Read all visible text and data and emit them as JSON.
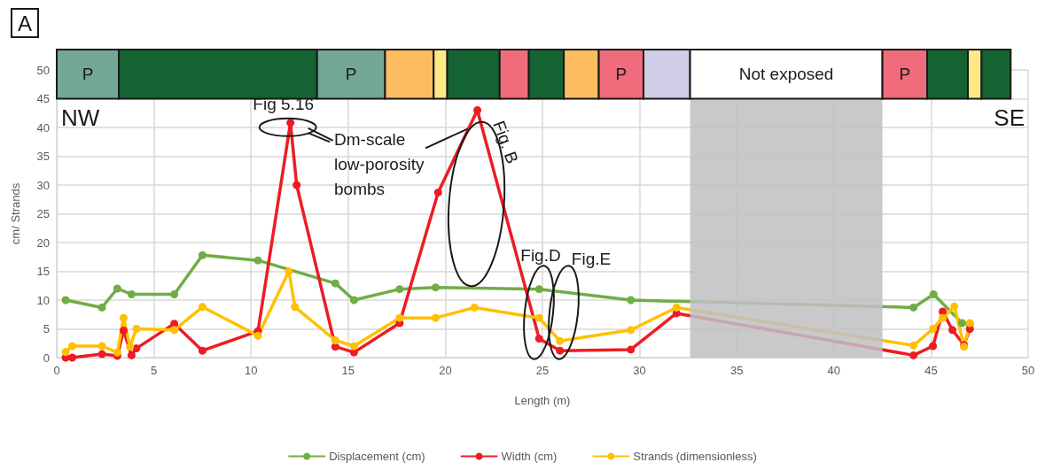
{
  "chart_data": {
    "type": "line",
    "xlabel": "Length (m)",
    "ylabel": "cm/ Strands",
    "xlim": [
      0,
      50
    ],
    "xticks": [
      0,
      5,
      10,
      15,
      20,
      25,
      30,
      35,
      40,
      45,
      50
    ],
    "ylim": [
      0,
      50
    ],
    "yticks": [
      0,
      5,
      10,
      15,
      20,
      25,
      30,
      35,
      40,
      45,
      50
    ],
    "grid": true,
    "legend": "bottom",
    "marker": "circle",
    "line_style": "solid",
    "series": [
      {
        "name": "Displacement (cm)",
        "color": "#70ad47",
        "x": [
          0.46,
          2.33,
          3.12,
          3.85,
          6.05,
          7.5,
          10.36,
          14.34,
          15.3,
          17.65,
          19.5,
          24.83,
          29.55,
          44.1,
          45.13,
          46.6,
          47.0
        ],
        "values": [
          10,
          8.7,
          12,
          11,
          11,
          17.8,
          16.9,
          12.9,
          10,
          11.9,
          12.2,
          11.9,
          10,
          8.7,
          11,
          6,
          5.8
        ]
      },
      {
        "name": "Width (cm)",
        "color": "#ed1c24",
        "x": [
          0.46,
          0.8,
          2.33,
          3.12,
          3.44,
          3.85,
          4.1,
          6.05,
          7.5,
          10.36,
          12.03,
          12.35,
          14.34,
          15.3,
          17.65,
          19.63,
          21.65,
          24.83,
          25.9,
          29.55,
          31.9,
          44.1,
          45.1,
          45.6,
          46.1,
          46.7,
          47.0
        ],
        "values": [
          0,
          0,
          0.6,
          0.3,
          4.7,
          0.4,
          1.6,
          5.9,
          1.2,
          4.6,
          40.8,
          30,
          1.9,
          0.9,
          6,
          28.7,
          43,
          3.3,
          1.2,
          1.4,
          7.7,
          0.4,
          2,
          8,
          4.8,
          2.2,
          5
        ]
      },
      {
        "name": "Strands (dimensionless)",
        "color": "#ffc000",
        "x": [
          0.46,
          0.8,
          2.33,
          3.12,
          3.44,
          3.77,
          4.1,
          6.05,
          7.5,
          10.36,
          11.95,
          12.26,
          14.34,
          15.3,
          17.65,
          19.5,
          21.5,
          24.83,
          25.9,
          29.55,
          31.9,
          44.1,
          45.1,
          45.6,
          46.2,
          46.7,
          47.0
        ],
        "values": [
          1,
          2,
          2,
          0.9,
          6.9,
          1.9,
          5,
          4.8,
          8.8,
          3.8,
          15,
          8.8,
          3,
          2,
          6.9,
          6.9,
          8.7,
          6.9,
          2.9,
          4.8,
          8.7,
          2.1,
          5,
          6.9,
          8.9,
          1.9,
          6
        ]
      }
    ],
    "bands": [
      {
        "axis": "x",
        "from": 0,
        "to": 3.2,
        "label": "P",
        "color": "#72a895"
      },
      {
        "axis": "x",
        "from": 3.2,
        "to": 13.4,
        "label": null,
        "color": "#156332"
      },
      {
        "axis": "x",
        "from": 13.4,
        "to": 16.9,
        "label": "P",
        "color": "#72a895"
      },
      {
        "axis": "x",
        "from": 16.9,
        "to": 19.4,
        "label": null,
        "color": "#fbbd60"
      },
      {
        "axis": "x",
        "from": 19.4,
        "to": 20.1,
        "label": null,
        "color": "#fdea86"
      },
      {
        "axis": "x",
        "from": 20.1,
        "to": 22.8,
        "label": null,
        "color": "#156332"
      },
      {
        "axis": "x",
        "from": 22.8,
        "to": 24.3,
        "label": null,
        "color": "#f06b7b"
      },
      {
        "axis": "x",
        "from": 24.3,
        "to": 26.1,
        "label": null,
        "color": "#156332"
      },
      {
        "axis": "x",
        "from": 26.1,
        "to": 27.9,
        "label": null,
        "color": "#fbbd60"
      },
      {
        "axis": "x",
        "from": 27.9,
        "to": 30.2,
        "label": "P",
        "color": "#f06b7b"
      },
      {
        "axis": "x",
        "from": 30.2,
        "to": 32.6,
        "label": null,
        "color": "#cfcde6"
      },
      {
        "axis": "x",
        "from": 32.6,
        "to": 42.5,
        "label": "Not exposed",
        "color": "#ffffff"
      },
      {
        "axis": "x",
        "from": 42.5,
        "to": 44.8,
        "label": "P",
        "color": "#f06b7b"
      },
      {
        "axis": "x",
        "from": 44.8,
        "to": 46.9,
        "label": null,
        "color": "#156332"
      },
      {
        "axis": "x",
        "from": 46.9,
        "to": 47.6,
        "label": null,
        "color": "#fdea86"
      },
      {
        "axis": "x",
        "from": 47.6,
        "to": 49.1,
        "label": null,
        "color": "#156332"
      },
      {
        "axis": "x",
        "from": 32.6,
        "to": 42.5,
        "label": null,
        "color": "#bfc0c2"
      }
    ],
    "annotations": [
      {
        "text": "Fig 5.16",
        "x": 12.03,
        "y": 40.8
      },
      {
        "text": "Fig. B",
        "x": 21.65,
        "y": 43
      },
      {
        "text": "Dm-scale low-porosity bombs",
        "x": 21.17,
        "y": 39.8
      },
      "Fig.D",
      "Fig.E",
      "NW",
      "SE",
      "A"
    ]
  }
}
